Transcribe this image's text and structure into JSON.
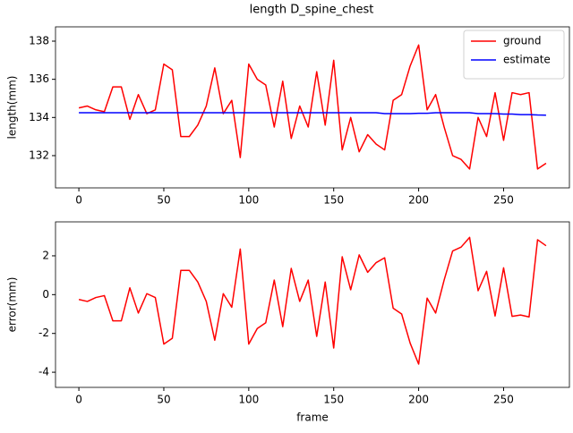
{
  "chart_data": [
    {
      "type": "line",
      "title": "length D_spine_chest",
      "ylabel": "length(mm)",
      "x": [
        0,
        5,
        10,
        15,
        20,
        25,
        30,
        35,
        40,
        45,
        50,
        55,
        60,
        65,
        70,
        75,
        80,
        85,
        90,
        95,
        100,
        105,
        110,
        115,
        120,
        125,
        130,
        135,
        140,
        145,
        150,
        155,
        160,
        165,
        170,
        175,
        180,
        185,
        190,
        195,
        200,
        205,
        210,
        215,
        220,
        225,
        230,
        235,
        240,
        245,
        250,
        255,
        260,
        265,
        270,
        275
      ],
      "series": [
        {
          "name": "ground",
          "color": "#ff0000",
          "values": [
            134.5,
            134.6,
            134.4,
            134.3,
            135.6,
            135.6,
            133.9,
            135.2,
            134.2,
            134.4,
            136.8,
            136.5,
            133.0,
            133.0,
            133.6,
            134.6,
            136.6,
            134.2,
            134.9,
            131.9,
            136.8,
            136.0,
            135.7,
            133.5,
            135.9,
            132.9,
            134.6,
            133.5,
            136.4,
            133.6,
            137.0,
            132.3,
            134.0,
            132.2,
            133.1,
            132.6,
            132.3,
            134.9,
            135.2,
            136.7,
            137.8,
            134.4,
            135.2,
            133.5,
            132.0,
            131.8,
            131.3,
            134.0,
            133.0,
            135.3,
            132.8,
            135.3,
            135.2,
            135.3,
            131.3,
            131.6
          ]
        },
        {
          "name": "estimate",
          "color": "#0000ff",
          "values": [
            134.25,
            134.25,
            134.25,
            134.25,
            134.25,
            134.25,
            134.25,
            134.25,
            134.25,
            134.25,
            134.25,
            134.25,
            134.25,
            134.25,
            134.25,
            134.25,
            134.25,
            134.25,
            134.25,
            134.25,
            134.25,
            134.25,
            134.25,
            134.25,
            134.25,
            134.25,
            134.25,
            134.25,
            134.25,
            134.25,
            134.25,
            134.25,
            134.25,
            134.25,
            134.25,
            134.25,
            134.2,
            134.2,
            134.2,
            134.2,
            134.22,
            134.22,
            134.25,
            134.25,
            134.25,
            134.25,
            134.25,
            134.2,
            134.2,
            134.2,
            134.18,
            134.18,
            134.15,
            134.15,
            134.13,
            134.12
          ]
        }
      ],
      "xlim": [
        -13.75,
        288.75
      ],
      "ylim": [
        130.31,
        138.75
      ],
      "xticks": [
        0,
        50,
        100,
        150,
        200,
        250
      ],
      "yticks": [
        132,
        134,
        136,
        138
      ],
      "legend": "upper right",
      "grid": false
    },
    {
      "type": "line",
      "xlabel": "frame",
      "ylabel": "error(mm)",
      "x": [
        0,
        5,
        10,
        15,
        20,
        25,
        30,
        35,
        40,
        45,
        50,
        55,
        60,
        65,
        70,
        75,
        80,
        85,
        90,
        95,
        100,
        105,
        110,
        115,
        120,
        125,
        130,
        135,
        140,
        145,
        150,
        155,
        160,
        165,
        170,
        175,
        180,
        185,
        190,
        195,
        200,
        205,
        210,
        215,
        220,
        225,
        230,
        235,
        240,
        245,
        250,
        255,
        260,
        265,
        270,
        275
      ],
      "series": [
        {
          "color": "#ff0000",
          "values": [
            -0.25,
            -0.35,
            -0.15,
            -0.05,
            -1.35,
            -1.35,
            0.35,
            -0.95,
            0.05,
            -0.15,
            -2.55,
            -2.25,
            1.25,
            1.25,
            0.65,
            -0.35,
            -2.35,
            0.05,
            -0.65,
            2.35,
            -2.55,
            -1.75,
            -1.45,
            0.75,
            -1.65,
            1.35,
            -0.35,
            0.75,
            -2.15,
            0.65,
            -2.75,
            1.95,
            0.25,
            2.05,
            1.15,
            1.65,
            1.9,
            -0.7,
            -1.0,
            -2.5,
            -3.58,
            -0.18,
            -0.95,
            0.75,
            2.25,
            2.45,
            2.95,
            0.2,
            1.2,
            -1.1,
            1.38,
            -1.12,
            -1.05,
            -1.15,
            2.83,
            2.52
          ]
        }
      ],
      "xlim": [
        -13.75,
        288.75
      ],
      "ylim": [
        -4.78,
        3.75
      ],
      "xticks": [
        0,
        50,
        100,
        150,
        200,
        250
      ],
      "yticks": [
        -4,
        -2,
        0,
        2
      ],
      "grid": false
    }
  ]
}
